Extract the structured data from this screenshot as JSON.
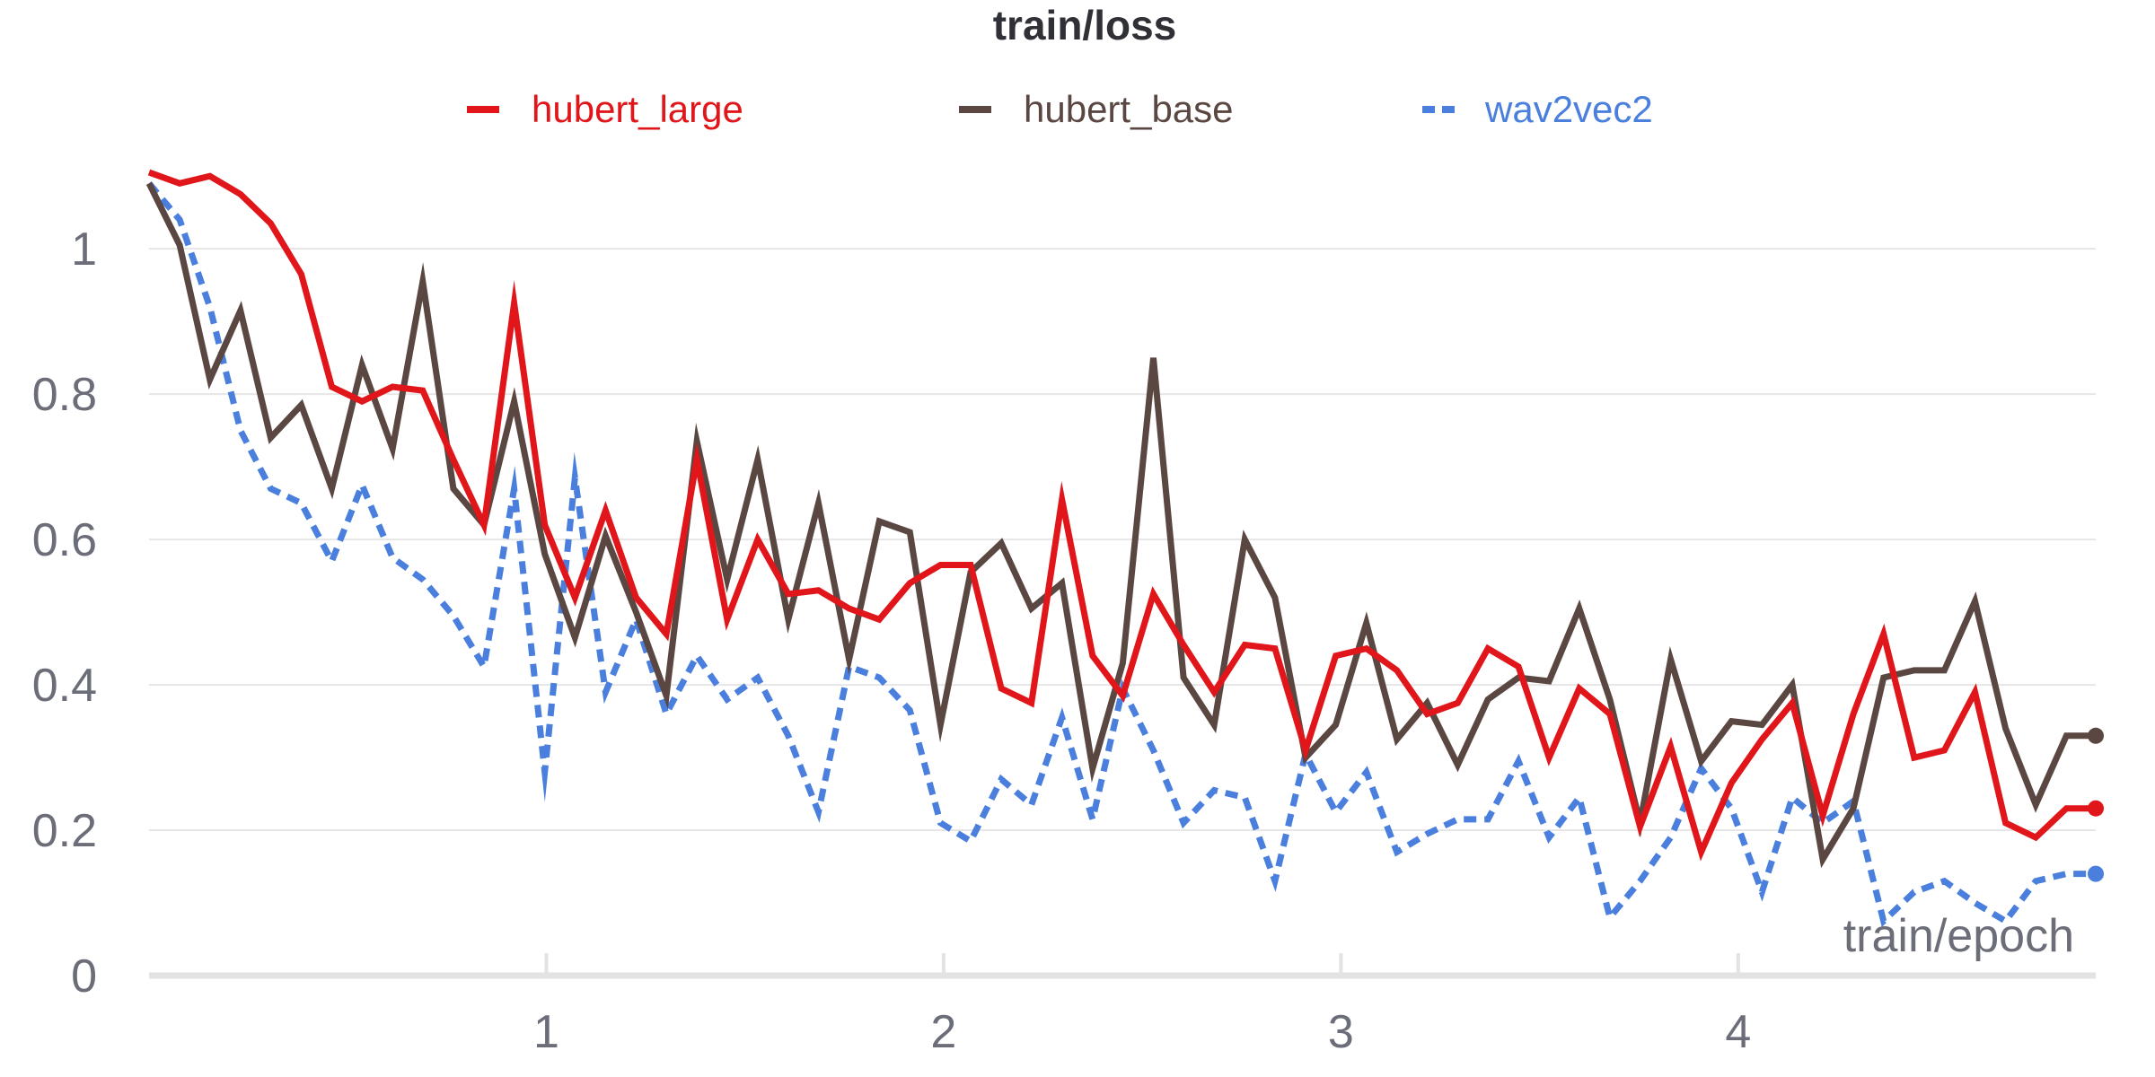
{
  "chart_data": {
    "type": "line",
    "title": "train/loss",
    "xlabel": "train/epoch",
    "ylabel": "",
    "xlim": [
      0.0,
      4.9
    ],
    "ylim": [
      0,
      1.12
    ],
    "x_ticks": [
      "1",
      "2",
      "3",
      "4"
    ],
    "y_ticks": [
      "0",
      "0.2",
      "0.4",
      "0.6",
      "0.8",
      "1"
    ],
    "grid": true,
    "legend_position": "top",
    "x": [
      0.0,
      0.077,
      0.153,
      0.23,
      0.306,
      0.383,
      0.46,
      0.536,
      0.613,
      0.689,
      0.766,
      0.843,
      0.919,
      0.996,
      1.072,
      1.149,
      1.226,
      1.302,
      1.379,
      1.455,
      1.532,
      1.609,
      1.685,
      1.762,
      1.838,
      1.915,
      1.992,
      2.068,
      2.145,
      2.221,
      2.298,
      2.375,
      2.451,
      2.528,
      2.604,
      2.681,
      2.758,
      2.834,
      2.911,
      2.987,
      3.064,
      3.141,
      3.217,
      3.294,
      3.37,
      3.447,
      3.524,
      3.6,
      3.677,
      3.753,
      3.83,
      3.907,
      3.983,
      4.06,
      4.136,
      4.213,
      4.29,
      4.366,
      4.443,
      4.519,
      4.596,
      4.673,
      4.749,
      4.826,
      4.9
    ],
    "series": [
      {
        "name": "hubert_large",
        "color": "#e0161b",
        "dash": "solid",
        "values": [
          1.105,
          1.09,
          1.1,
          1.075,
          1.035,
          0.965,
          0.81,
          0.79,
          0.81,
          0.805,
          0.71,
          0.62,
          0.925,
          0.62,
          0.52,
          0.64,
          0.52,
          0.47,
          0.71,
          0.49,
          0.6,
          0.525,
          0.53,
          0.505,
          0.49,
          0.54,
          0.565,
          0.565,
          0.395,
          0.375,
          0.655,
          0.44,
          0.385,
          0.525,
          0.455,
          0.39,
          0.455,
          0.45,
          0.31,
          0.44,
          0.45,
          0.42,
          0.36,
          0.375,
          0.45,
          0.425,
          0.3,
          0.395,
          0.36,
          0.205,
          0.315,
          0.17,
          0.265,
          0.325,
          0.375,
          0.22,
          0.36,
          0.47,
          0.3,
          0.31,
          0.39,
          0.21,
          0.19,
          0.23,
          0.23
        ]
      },
      {
        "name": "hubert_base",
        "color": "#5b4742",
        "dash": "solid",
        "values": [
          1.09,
          1.005,
          0.82,
          0.915,
          0.74,
          0.785,
          0.67,
          0.84,
          0.725,
          0.955,
          0.67,
          0.62,
          0.79,
          0.58,
          0.465,
          0.605,
          0.5,
          0.385,
          0.735,
          0.545,
          0.71,
          0.49,
          0.65,
          0.435,
          0.625,
          0.61,
          0.345,
          0.555,
          0.595,
          0.505,
          0.54,
          0.285,
          0.43,
          0.85,
          0.41,
          0.345,
          0.6,
          0.52,
          0.3,
          0.345,
          0.485,
          0.325,
          0.375,
          0.29,
          0.38,
          0.41,
          0.405,
          0.505,
          0.38,
          0.21,
          0.435,
          0.295,
          0.35,
          0.345,
          0.4,
          0.16,
          0.23,
          0.41,
          0.42,
          0.42,
          0.515,
          0.34,
          0.235,
          0.33,
          0.33
        ]
      },
      {
        "name": "wav2vec2",
        "color": "#4a7fdd",
        "dash": "dashed",
        "values": [
          1.09,
          1.04,
          0.92,
          0.75,
          0.67,
          0.65,
          0.57,
          0.675,
          0.575,
          0.545,
          0.495,
          0.425,
          0.67,
          0.28,
          0.685,
          0.39,
          0.49,
          0.36,
          0.44,
          0.38,
          0.41,
          0.33,
          0.225,
          0.425,
          0.41,
          0.365,
          0.21,
          0.185,
          0.27,
          0.235,
          0.355,
          0.215,
          0.395,
          0.31,
          0.21,
          0.255,
          0.245,
          0.13,
          0.305,
          0.225,
          0.28,
          0.17,
          0.195,
          0.215,
          0.215,
          0.295,
          0.19,
          0.245,
          0.08,
          0.13,
          0.19,
          0.285,
          0.23,
          0.115,
          0.245,
          0.21,
          0.24,
          0.075,
          0.115,
          0.13,
          0.1,
          0.075,
          0.13,
          0.14,
          0.14
        ]
      }
    ]
  }
}
